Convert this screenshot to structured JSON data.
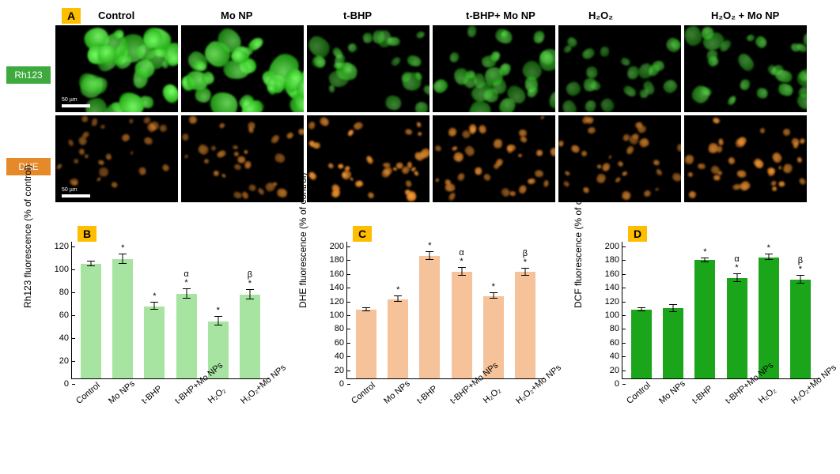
{
  "panelA": {
    "badge": "A",
    "columns": [
      "Control",
      "Mo NP",
      "t-BHP",
      "t-BHP+ Mo NP",
      "H₂O₂",
      "H₂O₂ + Mo NP"
    ],
    "rows": [
      {
        "label": "Rh123",
        "label_bg": "#3eaa3e",
        "stain": "green",
        "intensities": [
          1.0,
          1.0,
          0.55,
          0.65,
          0.42,
          0.6
        ]
      },
      {
        "label": "DHE",
        "label_bg": "#e58a2a",
        "stain": "orange",
        "intensities": [
          0.45,
          0.55,
          0.9,
          0.75,
          0.6,
          0.78
        ]
      }
    ],
    "scalebar_text": "50 µm"
  },
  "charts": [
    {
      "badge": "B",
      "ylabel": "Rh123 fluorescence (% of control)",
      "ylim": [
        0,
        120
      ],
      "ytick_step": 20,
      "bar_color": "#a7e3a1",
      "categories": [
        "Control",
        "Mo NPs",
        "t-BHP",
        "t-BHP+Mo NPs",
        "H₂O₂",
        "H₂O₂+Mo NPs"
      ],
      "values": [
        100,
        104,
        63,
        74,
        50,
        73
      ],
      "errors": [
        2,
        4,
        3,
        4,
        4,
        4
      ],
      "sigs": [
        "",
        "*",
        "*",
        "α\n*",
        "*",
        "β\n*"
      ]
    },
    {
      "badge": "C",
      "ylabel": "DHE fluorescence (% of control)",
      "ylim": [
        0,
        200
      ],
      "ytick_step": 20,
      "bar_color": "#f6c29a",
      "categories": [
        "Control",
        "Mo NPs",
        "t-BHP",
        "t-BHP+Mo NPs",
        "H₂O₂",
        "H₂O₂+Mo NPs"
      ],
      "values": [
        100,
        115,
        178,
        155,
        120,
        155
      ],
      "errors": [
        2,
        4,
        6,
        6,
        4,
        5
      ],
      "sigs": [
        "",
        "*",
        "*",
        "α\n*",
        "*",
        "β\n*"
      ]
    },
    {
      "badge": "D",
      "ylabel": "DCF fluorescence (% of control)",
      "ylim": [
        0,
        200
      ],
      "ytick_step": 20,
      "bar_color": "#1aa51a",
      "categories": [
        "Control",
        "Mo NPs",
        "t-BHP",
        "t-BHP+Mo NPs",
        "H₂O₂",
        "H₂O₂+Mo NPs"
      ],
      "values": [
        100,
        102,
        172,
        146,
        176,
        144
      ],
      "errors": [
        2,
        5,
        3,
        6,
        4,
        6
      ],
      "sigs": [
        "",
        "",
        "*",
        "α\n*",
        "*",
        "β\n*"
      ]
    }
  ],
  "style": {
    "background": "#ffffff",
    "badge_bg": "#ffbd00",
    "axis_color": "#000000",
    "green_cell_color": "#3ed23e",
    "orange_cell_color": "#e58a2a",
    "axis_fontsize": 11,
    "label_fontsize": 12,
    "badge_fontsize": 14
  }
}
